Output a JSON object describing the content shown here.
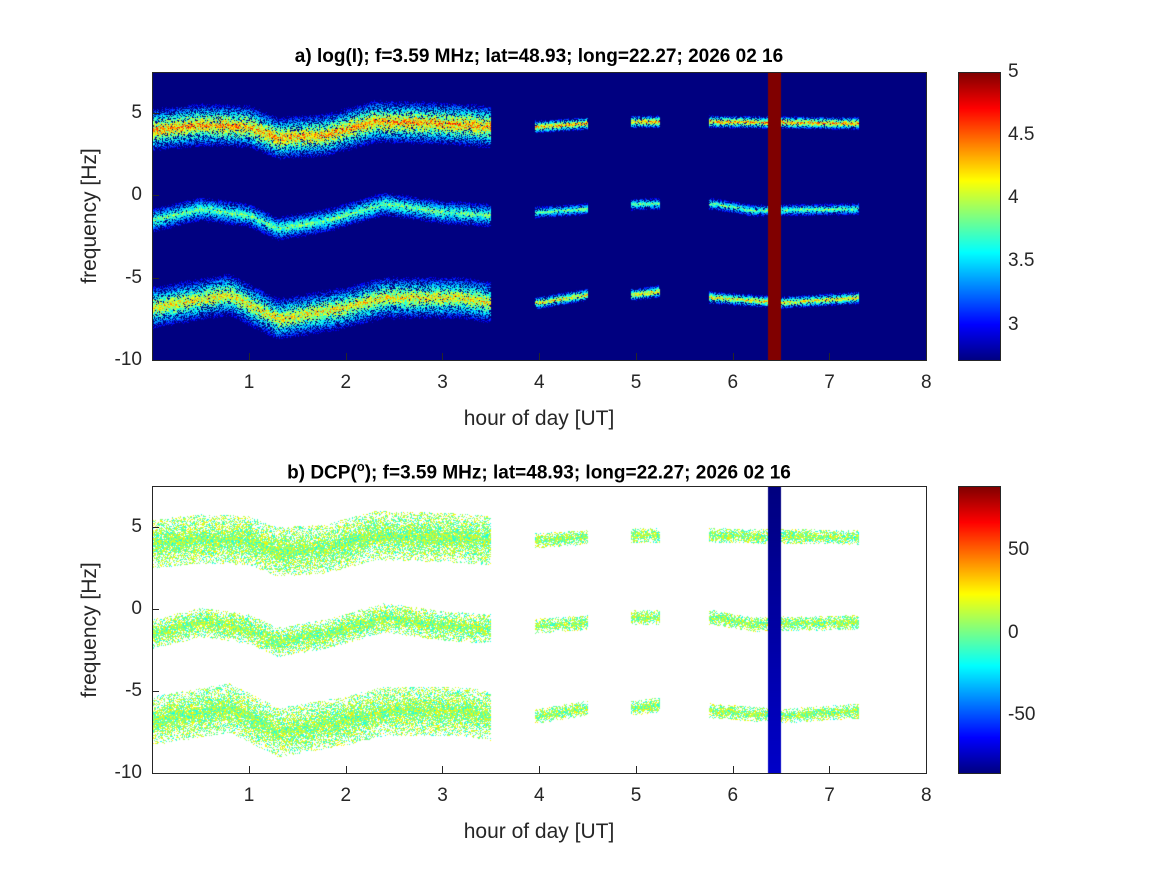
{
  "chart_data": [
    {
      "type": "heatmap",
      "title": "a) log(I); f=3.59 MHz;  lat=48.93; long=22.27; 2026 02 16",
      "xlabel": "hour of day [UT]",
      "ylabel": "frequency [Hz]",
      "xlim": [
        0,
        8
      ],
      "ylim": [
        -10,
        7.5
      ],
      "xticks": [
        "1",
        "2",
        "3",
        "4",
        "5",
        "6",
        "7",
        "8"
      ],
      "yticks": [
        "5",
        "0",
        "-5",
        "-10"
      ],
      "colorbar": {
        "range": [
          2.72,
          5
        ],
        "ticks": [
          "5",
          "4.5",
          "4",
          "3.5",
          "3"
        ],
        "colormap": "jet"
      },
      "background_value": 2.72,
      "data_segments_hours": [
        [
          0,
          3.5
        ],
        [
          3.95,
          4.5
        ],
        [
          4.95,
          5.25
        ],
        [
          5.75,
          7.3
        ]
      ],
      "saturated_column_hours": [
        6.36,
        6.5
      ],
      "bands": [
        {
          "name": "upper",
          "peak": 4.6,
          "trace": [
            [
              0,
              4
            ],
            [
              0.5,
              4.3
            ],
            [
              1,
              4.2
            ],
            [
              1.3,
              3.5
            ],
            [
              1.8,
              3.7
            ],
            [
              2.3,
              4.5
            ],
            [
              3,
              4.4
            ],
            [
              3.5,
              4.2
            ],
            [
              4,
              4.2
            ],
            [
              4.5,
              4.4
            ],
            [
              5,
              4.5
            ],
            [
              5.25,
              4.5
            ],
            [
              5.8,
              4.5
            ],
            [
              7.3,
              4.4
            ]
          ]
        },
        {
          "name": "middle",
          "peak": 4.0,
          "trace": [
            [
              0,
              -1.5
            ],
            [
              0.5,
              -0.8
            ],
            [
              1,
              -1.2
            ],
            [
              1.3,
              -2
            ],
            [
              1.8,
              -1.5
            ],
            [
              2.4,
              -0.5
            ],
            [
              3,
              -1
            ],
            [
              3.5,
              -1.2
            ],
            [
              4,
              -1
            ],
            [
              4.5,
              -0.8
            ],
            [
              5,
              -0.5
            ],
            [
              5.8,
              -0.5
            ],
            [
              6.2,
              -0.9
            ],
            [
              7.3,
              -0.8
            ]
          ]
        },
        {
          "name": "lower",
          "peak": 4.4,
          "trace": [
            [
              0,
              -6.8
            ],
            [
              0.8,
              -6
            ],
            [
              1.3,
              -7.5
            ],
            [
              2,
              -6.8
            ],
            [
              2.4,
              -6.2
            ],
            [
              3.2,
              -6.2
            ],
            [
              3.5,
              -6.5
            ],
            [
              4,
              -6.5
            ],
            [
              4.5,
              -6
            ],
            [
              5,
              -6
            ],
            [
              5.25,
              -5.8
            ],
            [
              5.8,
              -6.2
            ],
            [
              6.5,
              -6.5
            ],
            [
              7.3,
              -6.2
            ]
          ]
        }
      ]
    },
    {
      "type": "heatmap",
      "title": "b) DCP(",
      "title_sup": "o",
      "title_rest": "); f=3.59 MHz;  lat=48.93; long=22.27; 2026 02 16",
      "xlabel": "hour of day [UT]",
      "ylabel": "frequency [Hz]",
      "xlim": [
        0,
        8
      ],
      "ylim": [
        -10,
        7.5
      ],
      "xticks": [
        "1",
        "2",
        "3",
        "4",
        "5",
        "6",
        "7",
        "8"
      ],
      "yticks": [
        "5",
        "0",
        "-5",
        "-10"
      ],
      "colorbar": {
        "range": [
          -85,
          89
        ],
        "ticks": [
          "50",
          "0",
          "-50"
        ],
        "colormap": "jet"
      },
      "typical_value": 0,
      "saturated_column_hours": [
        6.36,
        6.5
      ]
    }
  ]
}
